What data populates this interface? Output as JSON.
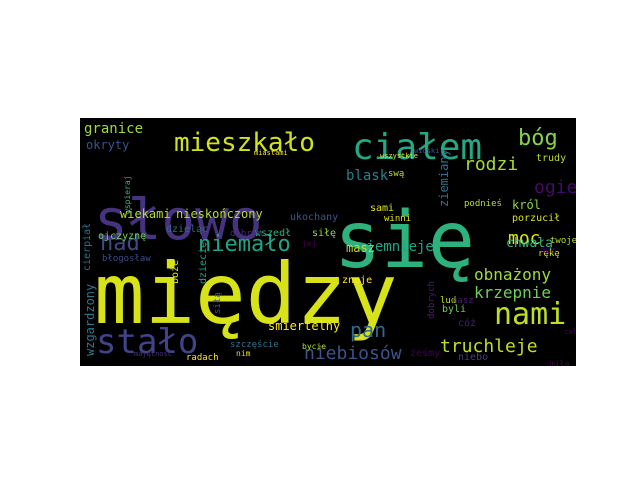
{
  "cloud": {
    "background": "#000000",
    "words": [
      {
        "text": "między",
        "color": "#d8e219"
      },
      {
        "text": "się",
        "color": "#2db27d"
      },
      {
        "text": "słowo",
        "color": "#46327e"
      },
      {
        "text": "ciałem",
        "color": "#26a784"
      },
      {
        "text": "stało",
        "color": "#404387"
      },
      {
        "text": "mieszkało",
        "color": "#d2e21b"
      },
      {
        "text": "nami",
        "color": "#bddf26"
      },
      {
        "text": "niemało",
        "color": "#20a386"
      },
      {
        "text": "bóg",
        "color": "#84d44b"
      },
      {
        "text": "rodzi",
        "color": "#a5db36"
      },
      {
        "text": "nad",
        "color": "#3e4a89"
      },
      {
        "text": "niebiosów",
        "color": "#3b528b"
      },
      {
        "text": "pan",
        "color": "#31688e"
      },
      {
        "text": "truchleje",
        "color": "#bddf26"
      },
      {
        "text": "krzepnie",
        "color": "#6ece58"
      },
      {
        "text": "obnażony",
        "color": "#a2da37"
      },
      {
        "text": "moc",
        "color": "#dde318"
      },
      {
        "text": "chwałą",
        "color": "#35b779"
      },
      {
        "text": "ogień",
        "color": "#46086a"
      },
      {
        "text": "blask",
        "color": "#277f8e"
      },
      {
        "text": "granice",
        "color": "#9fda3a"
      },
      {
        "text": "wiekami",
        "color": "#b5de2b"
      },
      {
        "text": "nieskończony",
        "color": "#b5de2b"
      },
      {
        "text": "ciemnieje",
        "color": "#20a486"
      },
      {
        "text": "masz",
        "color": "#bddf26"
      },
      {
        "text": "śmiertelny",
        "color": "#fde725"
      },
      {
        "text": "król",
        "color": "#8bd646"
      },
      {
        "text": "ziemiany",
        "color": "#2c728e"
      },
      {
        "text": "porzucił",
        "color": "#d8e219"
      },
      {
        "text": "okryty",
        "color": "#3b528b"
      },
      {
        "text": "ukochany",
        "color": "#39568c"
      },
      {
        "text": "wzgardzony",
        "color": "#2a788e"
      },
      {
        "text": "szczęście",
        "color": "#2c728e"
      },
      {
        "text": "radach",
        "color": "#fde725"
      },
      {
        "text": "żeśmy",
        "color": "#440154"
      },
      {
        "text": "niebo",
        "color": "#433e85"
      },
      {
        "text": "cóż",
        "color": "#481f70"
      },
      {
        "text": "lud",
        "color": "#bddf26"
      },
      {
        "text": "nasz",
        "color": "#481f70"
      },
      {
        "text": "trudy",
        "color": "#b5de2b"
      },
      {
        "text": "dzieląc",
        "color": "#31688e"
      },
      {
        "text": "wszedł",
        "color": "#29af7f"
      },
      {
        "text": "siłę",
        "color": "#90d743"
      },
      {
        "text": "dobrym",
        "color": "#482878"
      },
      {
        "text": "ojczyznę",
        "color": "#6ece58"
      },
      {
        "text": "cierpiał",
        "color": "#2c728e"
      },
      {
        "text": "błogosław",
        "color": "#3e4a89"
      },
      {
        "text": "boże",
        "color": "#dde318"
      },
      {
        "text": "dziecię",
        "color": "#1fa188"
      },
      {
        "text": "siłą",
        "color": "#3b528b"
      },
      {
        "text": "znoje",
        "color": "#fde725"
      },
      {
        "text": "dobrych",
        "color": "#481f70"
      },
      {
        "text": "byli",
        "color": "#6ece58"
      },
      {
        "text": "sami",
        "color": "#dde318"
      },
      {
        "text": "winni",
        "color": "#dde318"
      },
      {
        "text": "swą",
        "color": "#bddf26"
      },
      {
        "text": "podnieś",
        "color": "#b5de2b"
      },
      {
        "text": "rękę",
        "color": "#dde318"
      },
      {
        "text": "dom",
        "color": "#440154"
      },
      {
        "text": "twoje",
        "color": "#b5de2b"
      },
      {
        "text": "wspieraj",
        "color": "#35b779"
      },
      {
        "text": "miastami",
        "color": "#fde725"
      },
      {
        "text": "wszystkie",
        "color": "#e5e419"
      },
      {
        "text": "nim",
        "color": "#dde318"
      },
      {
        "text": "bycie",
        "color": "#b5de2b"
      },
      {
        "text": "jej",
        "color": "#440154"
      },
      {
        "text": "majętność",
        "color": "#46327e"
      },
      {
        "text": "wioski",
        "color": "#3b528b"
      },
      {
        "text": "miłą",
        "color": "#440154"
      },
      {
        "text": "całą",
        "color": "#440154"
      }
    ]
  }
}
